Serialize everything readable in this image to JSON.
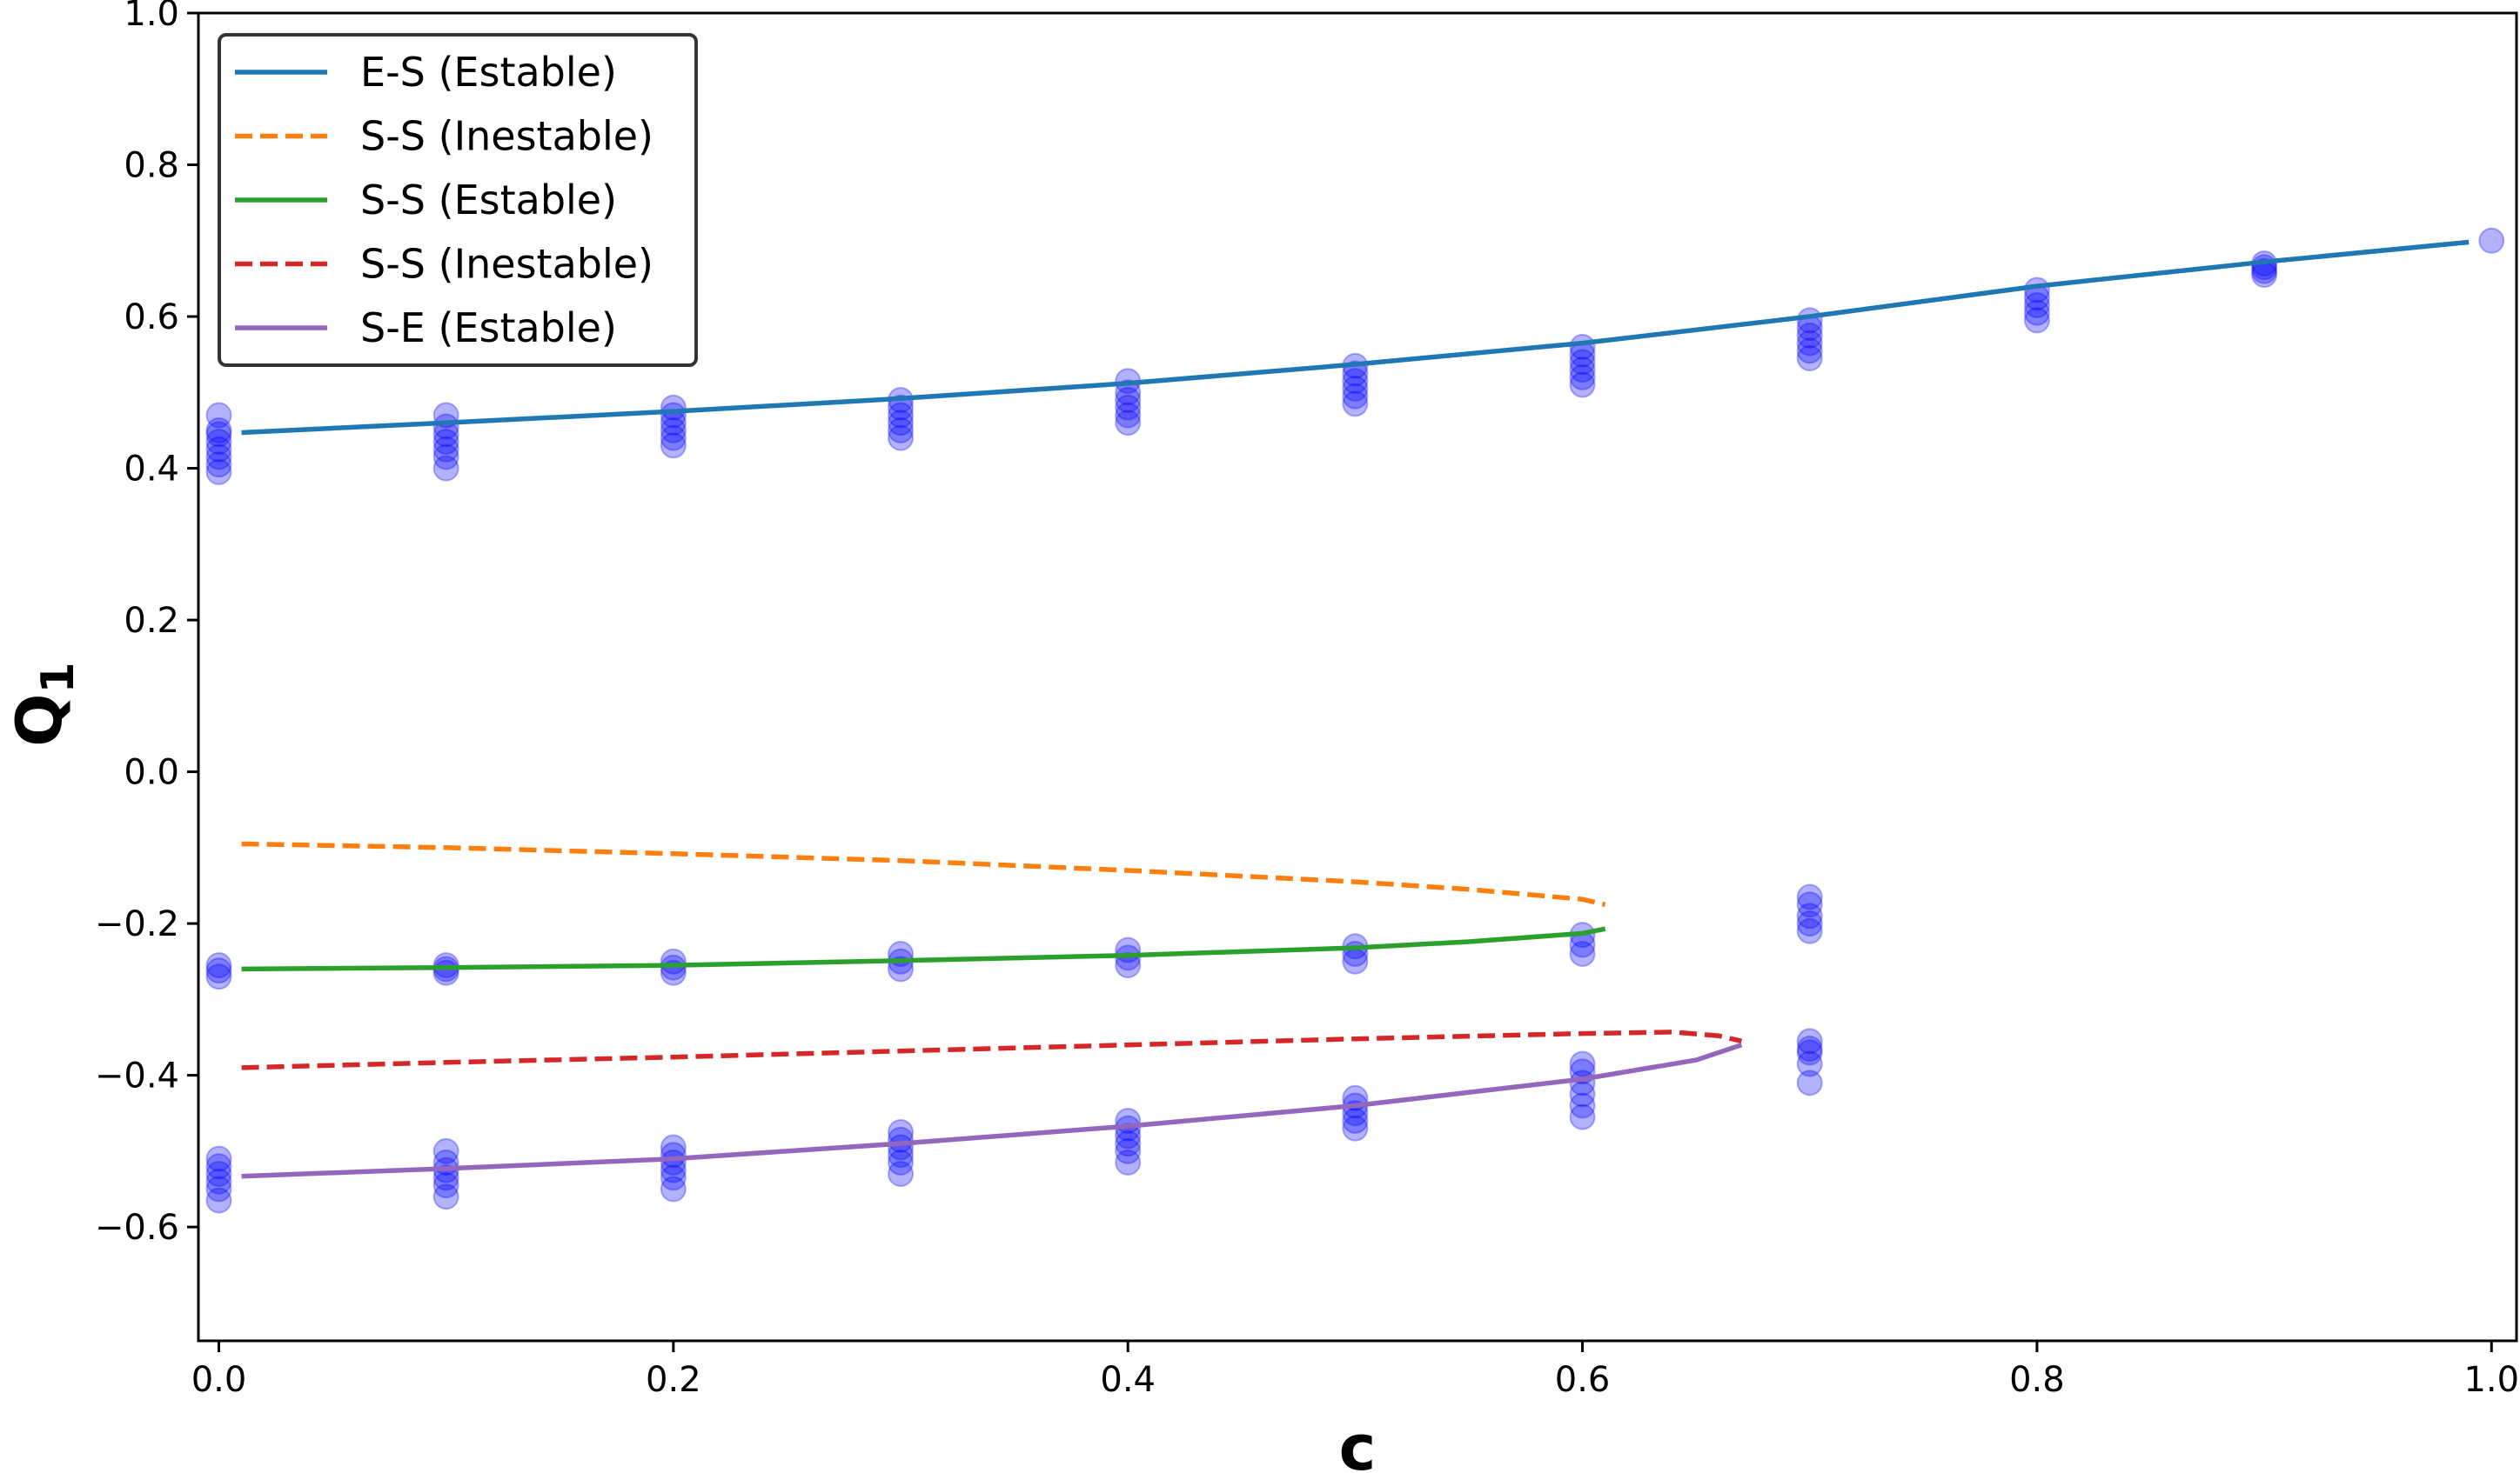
{
  "chart_data": {
    "type": "line",
    "title": "",
    "xlabel": "c",
    "ylabel": "Q",
    "ylabel_subscript": "1",
    "xlim": [
      -0.009,
      1.011
    ],
    "ylim": [
      -0.75,
      1.0
    ],
    "grid": false,
    "legend_placement": "top-left",
    "xticks": [
      0.0,
      0.2,
      0.4,
      0.6,
      0.8,
      1.0
    ],
    "xtick_labels": [
      "0.0",
      "0.2",
      "0.4",
      "0.6",
      "0.8",
      "1.0"
    ],
    "yticks": [
      1.0,
      0.8,
      0.6,
      0.4,
      0.2,
      0.0,
      -0.2,
      -0.4,
      -0.6
    ],
    "ytick_labels": [
      "1.0",
      "0.8",
      "0.6",
      "0.4",
      "0.2",
      "0.0",
      "−0.2",
      "−0.4",
      "−0.6"
    ],
    "series": [
      {
        "name": "E-S (Estable)",
        "color": "#1f77b4",
        "dash": false,
        "x": [
          0.01,
          0.1,
          0.2,
          0.3,
          0.4,
          0.5,
          0.6,
          0.7,
          0.8,
          0.9,
          0.99
        ],
        "y": [
          0.447,
          0.46,
          0.475,
          0.492,
          0.512,
          0.537,
          0.565,
          0.6,
          0.64,
          0.672,
          0.698
        ]
      },
      {
        "name": "S-S (Inestable)",
        "color": "#ff7f0e",
        "dash": true,
        "x": [
          0.01,
          0.1,
          0.2,
          0.3,
          0.4,
          0.5,
          0.55,
          0.6,
          0.61
        ],
        "y": [
          -0.095,
          -0.1,
          -0.108,
          -0.117,
          -0.13,
          -0.145,
          -0.155,
          -0.168,
          -0.175
        ]
      },
      {
        "name": "S-S (Estable)",
        "color": "#2ca02c",
        "dash": false,
        "x": [
          0.01,
          0.1,
          0.2,
          0.3,
          0.4,
          0.5,
          0.55,
          0.6,
          0.61
        ],
        "y": [
          -0.26,
          -0.258,
          -0.255,
          -0.249,
          -0.242,
          -0.232,
          -0.224,
          -0.213,
          -0.207
        ]
      },
      {
        "name": "S-S (Inestable)",
        "color": "#d62728",
        "dash": true,
        "x": [
          0.01,
          0.1,
          0.2,
          0.3,
          0.4,
          0.5,
          0.6,
          0.64,
          0.66,
          0.67
        ],
        "y": [
          -0.39,
          -0.383,
          -0.376,
          -0.368,
          -0.36,
          -0.352,
          -0.345,
          -0.343,
          -0.348,
          -0.355
        ]
      },
      {
        "name": "S-E (Estable)",
        "color": "#9467bd",
        "dash": false,
        "x": [
          0.01,
          0.1,
          0.2,
          0.3,
          0.4,
          0.5,
          0.6,
          0.65,
          0.67
        ],
        "y": [
          -0.533,
          -0.523,
          -0.51,
          -0.49,
          -0.467,
          -0.44,
          -0.405,
          -0.38,
          -0.36
        ]
      }
    ],
    "scatter": {
      "color": "#0000ff",
      "alpha": 0.3,
      "points": [
        {
          "x": 0.0,
          "y": [
            0.395,
            0.405,
            0.415,
            0.425,
            0.435,
            0.445,
            0.45,
            0.47,
            -0.27,
            -0.262,
            -0.255,
            -0.565,
            -0.55,
            -0.54,
            -0.53,
            -0.52,
            -0.51
          ]
        },
        {
          "x": 0.1,
          "y": [
            0.4,
            0.415,
            0.425,
            0.435,
            0.445,
            0.455,
            0.47,
            -0.265,
            -0.26,
            -0.255,
            -0.56,
            -0.545,
            -0.535,
            -0.525,
            -0.515,
            -0.5
          ]
        },
        {
          "x": 0.2,
          "y": [
            0.43,
            0.44,
            0.45,
            0.46,
            0.47,
            0.48,
            -0.265,
            -0.258,
            -0.25,
            -0.55,
            -0.535,
            -0.525,
            -0.515,
            -0.505,
            -0.495
          ]
        },
        {
          "x": 0.3,
          "y": [
            0.44,
            0.45,
            0.46,
            0.47,
            0.48,
            0.49,
            -0.26,
            -0.25,
            -0.24,
            -0.53,
            -0.515,
            -0.505,
            -0.495,
            -0.485,
            -0.475
          ]
        },
        {
          "x": 0.4,
          "y": [
            0.46,
            0.47,
            0.48,
            0.49,
            0.5,
            0.515,
            -0.255,
            -0.245,
            -0.235,
            -0.515,
            -0.5,
            -0.49,
            -0.48,
            -0.47,
            -0.46
          ]
        },
        {
          "x": 0.5,
          "y": [
            0.485,
            0.495,
            0.505,
            0.515,
            0.525,
            0.535,
            -0.25,
            -0.24,
            -0.23,
            -0.47,
            -0.46,
            -0.45,
            -0.44,
            -0.43
          ]
        },
        {
          "x": 0.6,
          "y": [
            0.51,
            0.52,
            0.53,
            0.54,
            0.55,
            0.56,
            -0.24,
            -0.228,
            -0.215,
            -0.455,
            -0.44,
            -0.425,
            -0.41,
            -0.395,
            -0.385
          ]
        },
        {
          "x": 0.7,
          "y": [
            0.545,
            0.555,
            0.565,
            0.575,
            0.585,
            0.595,
            -0.21,
            -0.2,
            -0.19,
            -0.175,
            -0.165,
            -0.41,
            -0.385,
            -0.37,
            -0.365,
            -0.355
          ]
        },
        {
          "x": 0.8,
          "y": [
            0.595,
            0.605,
            0.615,
            0.625,
            0.635
          ]
        },
        {
          "x": 0.9,
          "y": [
            0.655,
            0.66,
            0.665,
            0.67
          ]
        },
        {
          "x": 1.0,
          "y": [
            0.7
          ]
        }
      ]
    }
  }
}
